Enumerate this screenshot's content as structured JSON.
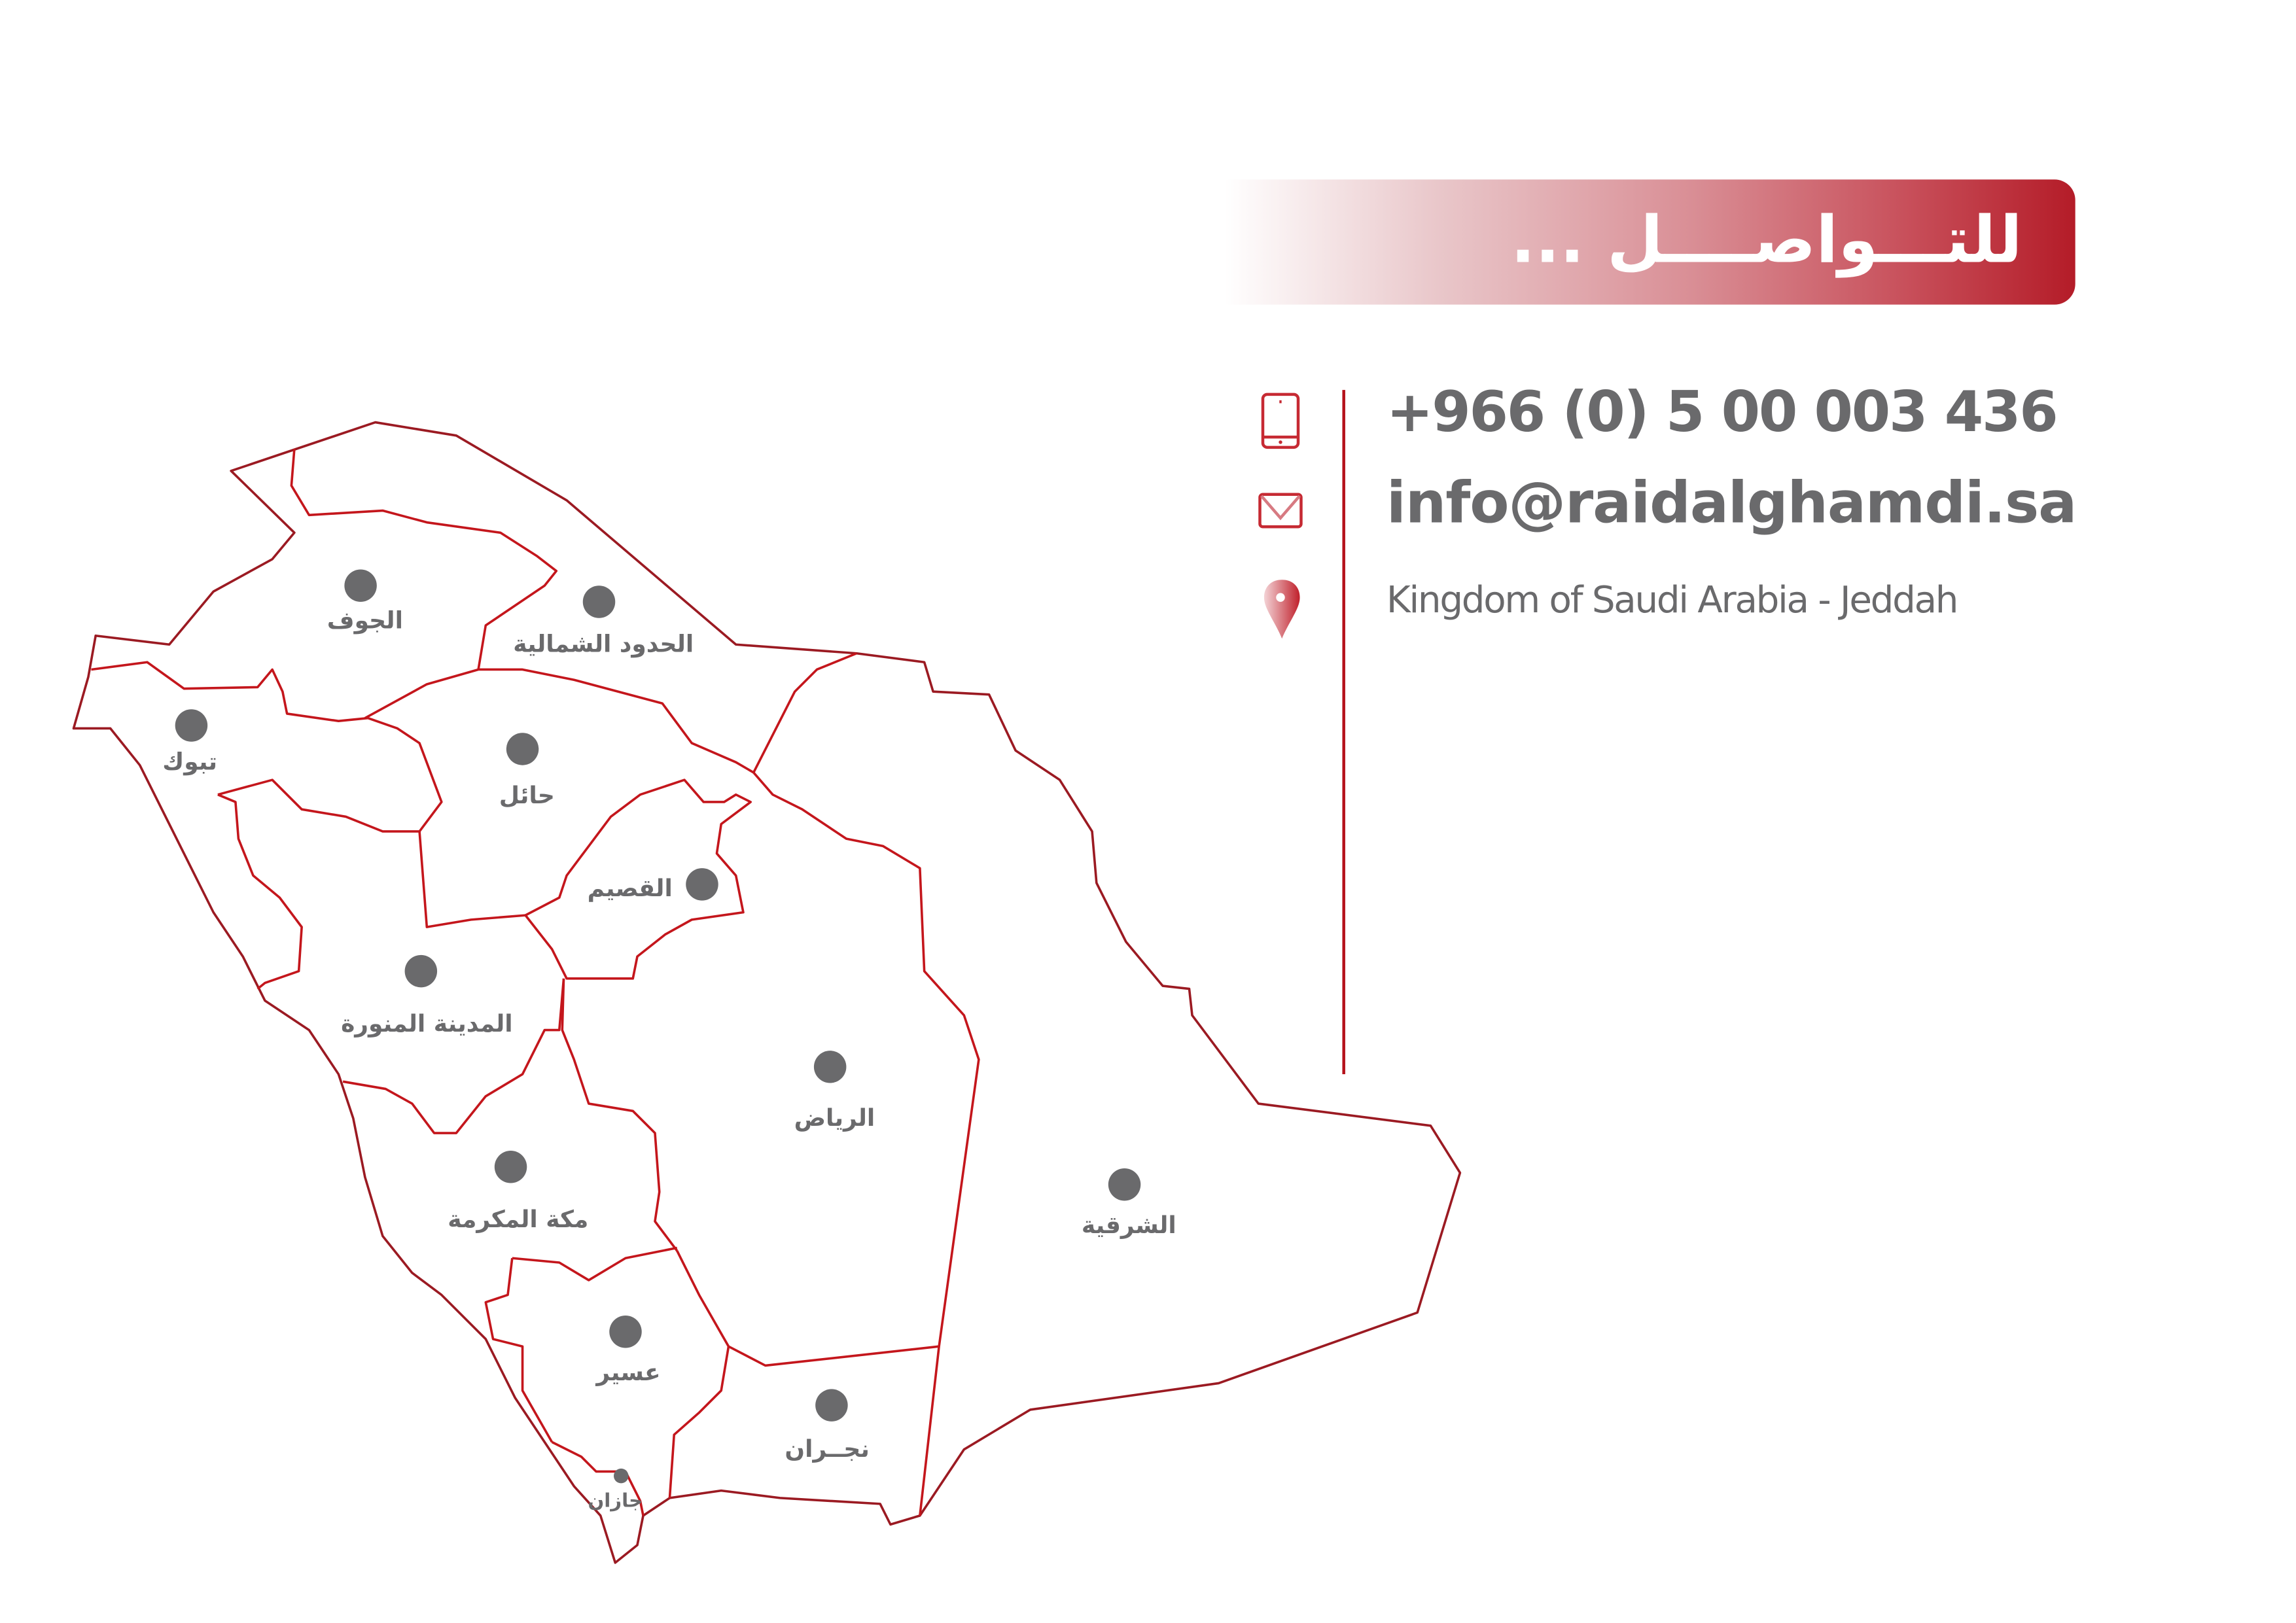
{
  "header": {
    "title": "للتـــواصــــل ..."
  },
  "contact": {
    "phone": "+966  (0) 5 00 003 436",
    "email": "info@raidalghamdi.sa",
    "address": "Kingdom of Saudi Arabia - Jeddah",
    "icons": [
      "mobile-phone-icon",
      "envelope-icon",
      "location-pin-icon"
    ]
  },
  "map": {
    "regions": [
      {
        "name": "الجوف"
      },
      {
        "name": "الحدود  الشمالية"
      },
      {
        "name": "تبوك"
      },
      {
        "name": "حائل"
      },
      {
        "name": "القصيم"
      },
      {
        "name": "المدينة المنورة"
      },
      {
        "name": "الرياض"
      },
      {
        "name": "الشرقية"
      },
      {
        "name": "مكة المكرمة"
      },
      {
        "name": "عسير"
      },
      {
        "name": "نجــران"
      },
      {
        "name": "جازان"
      }
    ]
  },
  "colors": {
    "accent": "#b41c28",
    "text": "#6a6a6c",
    "dot": "#6a6a6c",
    "border": "#c4161c"
  }
}
